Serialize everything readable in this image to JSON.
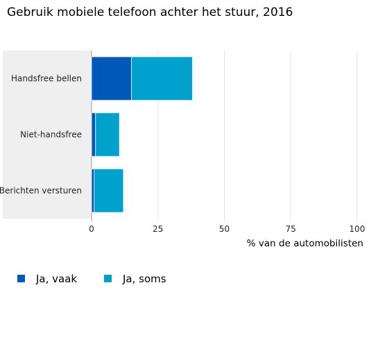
{
  "chart_data": {
    "type": "bar",
    "orientation": "horizontal",
    "stacked": true,
    "title": "Gebruik mobiele telefoon achter het stuur, 2016",
    "xlabel": "% van de automobilisten",
    "ylabel": "",
    "categories": [
      "Handsfree bellen",
      "Niet-handsfree",
      "Berichten versturen"
    ],
    "series": [
      {
        "name": "Ja, vaak",
        "color": "#0058b8",
        "values": [
          15,
          1.5,
          1
        ]
      },
      {
        "name": "Ja, soms",
        "color": "#00a1cd",
        "values": [
          23,
          9,
          11
        ]
      }
    ],
    "xlim": [
      0,
      100
    ],
    "xticks": [
      "0",
      "25",
      "50",
      "75",
      "100"
    ],
    "grid": true,
    "legend_position": "bottom-left",
    "category_panel_color": "#efefef"
  }
}
